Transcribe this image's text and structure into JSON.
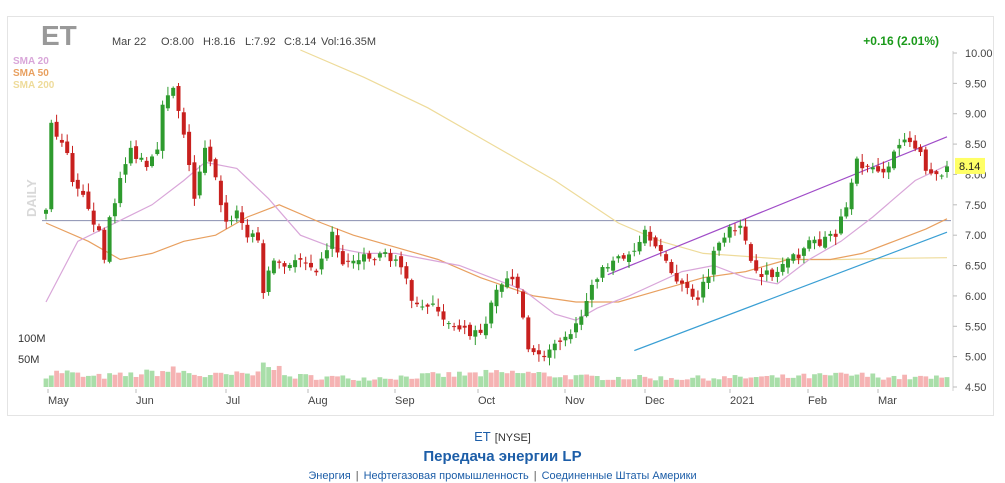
{
  "header": {
    "symbol": "ET",
    "date": "Mar 22",
    "open": "O:8.00",
    "high": "H:8.16",
    "low": "L:7.92",
    "close": "C:8.14",
    "volume": "Vol:16.35M",
    "change": "+0.16 (2.01%)",
    "watermark": "DAILY"
  },
  "legend": [
    {
      "label": "SMA 20",
      "color": "#d9a6d9"
    },
    {
      "label": "SMA 50",
      "color": "#e8a060"
    },
    {
      "label": "SMA 200",
      "color": "#eedb9a"
    }
  ],
  "colors": {
    "up": "#2e9b2e",
    "down": "#c8201e",
    "vol_up": "#a9dea9",
    "vol_down": "#f5b3b3",
    "change": "#1a9a1a"
  },
  "chart_data": {
    "type": "candlestick",
    "period": "daily",
    "y_range": [
      4.5,
      10.0
    ],
    "y_ticks": [
      "10.00",
      "9.50",
      "9.00",
      "8.50",
      "8.00",
      "7.50",
      "7.00",
      "6.50",
      "6.00",
      "5.50",
      "5.00",
      "4.50"
    ],
    "x_labels": [
      "May",
      "Jun",
      "Jul",
      "Aug",
      "Sep",
      "Oct",
      "Nov",
      "Dec",
      "2021",
      "Feb",
      "Mar"
    ],
    "volume_labels": [
      "100M",
      "50M"
    ],
    "volume_range": [
      0,
      120
    ],
    "last_price": "8.14",
    "trend_lines": [
      {
        "name": "resistance",
        "color": "#a04cc8",
        "from": [
          "Oct 26",
          6.35
        ],
        "to": [
          "Mar 22",
          8.62
        ]
      },
      {
        "name": "support",
        "color": "#3a9fd4",
        "from": [
          "Nov 10",
          5.1
        ],
        "to": [
          "Mar 22",
          7.05
        ]
      },
      {
        "name": "horizontal",
        "color": "#8a8fb0",
        "from": [
          "Apr 30",
          7.24
        ],
        "to": [
          "Mar 22",
          7.24
        ]
      }
    ],
    "sma20": [
      [
        0,
        5.9
      ],
      [
        6,
        6.9
      ],
      [
        20,
        7.5
      ],
      [
        26,
        7.9
      ],
      [
        30,
        8.2
      ],
      [
        36,
        8.1
      ],
      [
        42,
        7.6
      ],
      [
        48,
        7.0
      ],
      [
        54,
        6.8
      ],
      [
        60,
        6.7
      ],
      [
        66,
        6.7
      ],
      [
        72,
        6.6
      ],
      [
        78,
        6.5
      ],
      [
        84,
        6.3
      ],
      [
        90,
        6.1
      ],
      [
        96,
        5.7
      ],
      [
        100,
        5.6
      ],
      [
        104,
        5.8
      ],
      [
        110,
        6.0
      ],
      [
        120,
        6.4
      ],
      [
        126,
        6.5
      ],
      [
        132,
        6.3
      ],
      [
        138,
        6.2
      ],
      [
        144,
        6.6
      ],
      [
        150,
        6.9
      ],
      [
        156,
        7.3
      ],
      [
        160,
        7.6
      ],
      [
        164,
        7.9
      ],
      [
        170,
        8.15
      ]
    ],
    "sma50": [
      [
        0,
        7.2
      ],
      [
        8,
        6.9
      ],
      [
        14,
        6.6
      ],
      [
        20,
        6.7
      ],
      [
        26,
        6.9
      ],
      [
        32,
        7.0
      ],
      [
        38,
        7.3
      ],
      [
        44,
        7.5
      ],
      [
        52,
        7.2
      ],
      [
        58,
        7.0
      ],
      [
        66,
        6.8
      ],
      [
        74,
        6.6
      ],
      [
        82,
        6.3
      ],
      [
        92,
        6.0
      ],
      [
        100,
        5.9
      ],
      [
        108,
        5.9
      ],
      [
        116,
        6.1
      ],
      [
        124,
        6.3
      ],
      [
        132,
        6.4
      ],
      [
        140,
        6.6
      ],
      [
        148,
        6.6
      ],
      [
        154,
        6.7
      ],
      [
        160,
        6.9
      ],
      [
        166,
        7.1
      ],
      [
        170,
        7.27
      ]
    ],
    "sma200": [
      [
        48,
        10.05
      ],
      [
        60,
        9.6
      ],
      [
        72,
        9.1
      ],
      [
        84,
        8.5
      ],
      [
        96,
        7.9
      ],
      [
        108,
        7.2
      ],
      [
        116,
        6.9
      ],
      [
        124,
        6.7
      ],
      [
        132,
        6.65
      ],
      [
        140,
        6.6
      ],
      [
        150,
        6.6
      ],
      [
        160,
        6.62
      ],
      [
        170,
        6.63
      ]
    ],
    "anchors": [
      [
        0,
        7.4
      ],
      [
        1,
        8.9
      ],
      [
        2,
        8.6
      ],
      [
        4,
        8.3
      ],
      [
        5,
        7.8
      ],
      [
        8,
        7.5
      ],
      [
        10,
        7.0
      ],
      [
        11,
        6.6
      ],
      [
        12,
        7.3
      ],
      [
        14,
        7.9
      ],
      [
        16,
        8.4
      ],
      [
        19,
        8.2
      ],
      [
        21,
        8.5
      ],
      [
        22,
        9.1
      ],
      [
        24,
        9.4
      ],
      [
        25,
        9.0
      ],
      [
        27,
        8.2
      ],
      [
        28,
        7.6
      ],
      [
        30,
        8.4
      ],
      [
        32,
        7.9
      ],
      [
        34,
        7.2
      ],
      [
        36,
        7.4
      ],
      [
        38,
        7.0
      ],
      [
        40,
        6.9
      ],
      [
        41,
        6.1
      ],
      [
        43,
        6.6
      ],
      [
        45,
        6.5
      ],
      [
        47,
        6.6
      ],
      [
        49,
        6.5
      ],
      [
        51,
        6.3
      ],
      [
        53,
        6.8
      ],
      [
        54,
        7.0
      ],
      [
        56,
        6.5
      ],
      [
        59,
        6.6
      ],
      [
        62,
        6.6
      ],
      [
        64,
        6.7
      ],
      [
        66,
        6.6
      ],
      [
        69,
        6.0
      ],
      [
        72,
        5.8
      ],
      [
        74,
        5.8
      ],
      [
        76,
        5.5
      ],
      [
        78,
        5.4
      ],
      [
        80,
        5.4
      ],
      [
        82,
        5.4
      ],
      [
        84,
        5.8
      ],
      [
        85,
        6.1
      ],
      [
        87,
        6.3
      ],
      [
        89,
        6.1
      ],
      [
        91,
        5.2
      ],
      [
        93,
        5.0
      ],
      [
        95,
        5.1
      ],
      [
        97,
        5.2
      ],
      [
        99,
        5.3
      ],
      [
        100,
        5.5
      ],
      [
        102,
        6.0
      ],
      [
        104,
        6.2
      ],
      [
        105,
        6.5
      ],
      [
        107,
        6.6
      ],
      [
        109,
        6.6
      ],
      [
        111,
        6.8
      ],
      [
        113,
        7.1
      ],
      [
        115,
        6.9
      ],
      [
        117,
        6.5
      ],
      [
        119,
        6.3
      ],
      [
        121,
        6.1
      ],
      [
        123,
        6.0
      ],
      [
        125,
        6.4
      ],
      [
        126,
        6.7
      ],
      [
        127,
        6.9
      ],
      [
        129,
        7.2
      ],
      [
        131,
        7.1
      ],
      [
        133,
        6.6
      ],
      [
        135,
        6.4
      ],
      [
        137,
        6.3
      ],
      [
        139,
        6.5
      ],
      [
        141,
        6.6
      ],
      [
        143,
        6.8
      ],
      [
        145,
        6.9
      ],
      [
        147,
        6.9
      ],
      [
        149,
        7.0
      ],
      [
        151,
        7.5
      ],
      [
        153,
        8.2
      ],
      [
        155,
        8.1
      ],
      [
        157,
        8.0
      ],
      [
        159,
        8.2
      ],
      [
        161,
        8.5
      ],
      [
        163,
        8.5
      ],
      [
        165,
        8.3
      ],
      [
        167,
        7.95
      ],
      [
        169,
        8.0
      ],
      [
        170,
        8.14
      ]
    ],
    "volume_anchors": [
      [
        0,
        22
      ],
      [
        3,
        28
      ],
      [
        8,
        18
      ],
      [
        16,
        22
      ],
      [
        24,
        30
      ],
      [
        30,
        20
      ],
      [
        40,
        24
      ],
      [
        41,
        58
      ],
      [
        45,
        20
      ],
      [
        60,
        16
      ],
      [
        76,
        22
      ],
      [
        90,
        26
      ],
      [
        100,
        18
      ],
      [
        120,
        16
      ],
      [
        140,
        18
      ],
      [
        152,
        22
      ],
      [
        160,
        18
      ],
      [
        170,
        16
      ]
    ]
  },
  "footer": {
    "ticker": "ET",
    "exchange": "[NYSE]",
    "company": "Передача энергии LP",
    "categories": [
      "Энергия",
      "Нефтегазовая промышленность",
      "Соединенные Штаты Америки"
    ]
  }
}
